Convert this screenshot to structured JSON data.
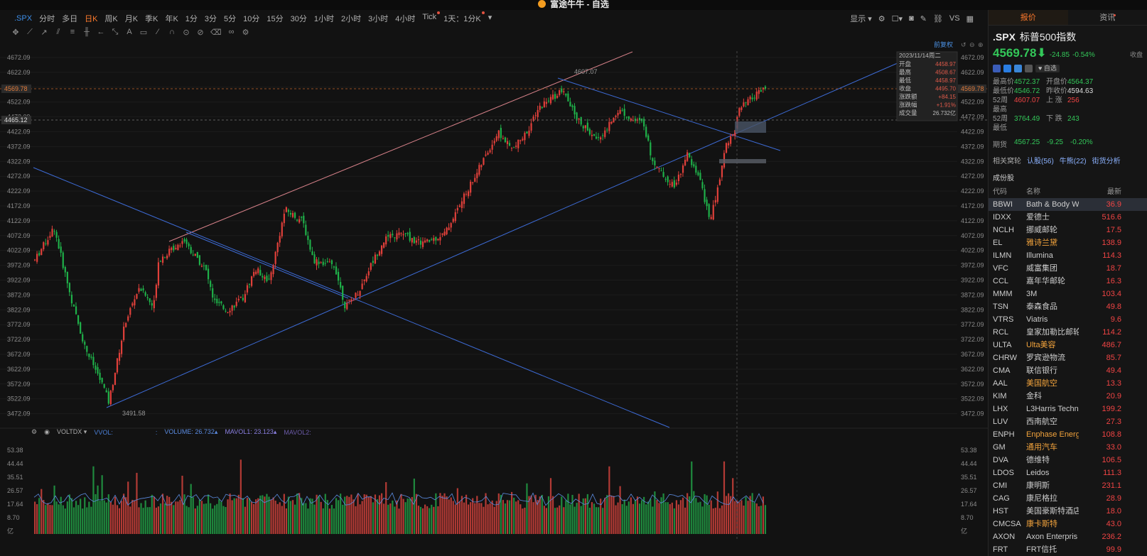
{
  "window": {
    "title": "富途牛牛 - 自选"
  },
  "toolbar": {
    "symbol": ".SPX",
    "periods": [
      "分时",
      "多日",
      "日K",
      "周K",
      "月K",
      "季K",
      "年K",
      "1分",
      "3分",
      "5分",
      "10分",
      "15分",
      "30分",
      "1小时",
      "2小时",
      "3小时",
      "4小时",
      "Tick",
      "1天：1分K"
    ],
    "active_period": "日K",
    "right": {
      "display_label": "显示",
      "vs_label": "VS"
    }
  },
  "chart": {
    "fq_label": "前复权",
    "y_ticks": [
      "4672.09",
      "4622.09",
      "4572.09",
      "4522.09",
      "4472.09",
      "4422.09",
      "4372.09",
      "4322.09",
      "4272.09",
      "4222.09",
      "4172.09",
      "4122.09",
      "4072.09",
      "4022.09",
      "3972.09",
      "3922.09",
      "3872.09",
      "3822.09",
      "3772.09",
      "3722.09",
      "3672.09",
      "3622.09",
      "3572.09",
      "3522.09",
      "3472.09"
    ],
    "current_price_tag": "4569.78",
    "crosshair_price_tag": "4465.12",
    "high_annotation": "4607.07",
    "low_annotation": "3491.58",
    "colors": {
      "up": "#e0403a",
      "down": "#1fb049",
      "channel": "#3d6bd6",
      "upper_line": "#d8828a",
      "bg": "#121212"
    },
    "info_box": {
      "date": "2023/11/14周二",
      "rows": [
        {
          "label": "开盘",
          "value": "4458.97"
        },
        {
          "label": "最高",
          "value": "4508.67"
        },
        {
          "label": "最低",
          "value": "4458.97"
        },
        {
          "label": "收盘",
          "value": "4495.70"
        },
        {
          "label": "涨跌额",
          "value": "+84.15"
        },
        {
          "label": "涨跌幅",
          "value": "+1.91%"
        },
        {
          "label": "成交量",
          "value": "26.732亿"
        }
      ]
    }
  },
  "volume": {
    "indicator": "VOLTDX",
    "vvol_label": "VVOL:",
    "volume_label": "VOLUME:",
    "volume_value": "26.732",
    "mavol1_label": "MAVOL1:",
    "mavol1_value": "23.123",
    "mavol2_label": "MAVOL2:",
    "y_ticks": [
      "53.38",
      "44.44",
      "35.51",
      "26.57",
      "17.64",
      "8.70",
      "亿"
    ]
  },
  "right_panel": {
    "tabs": [
      "报价",
      "资讯"
    ],
    "symbol": ".SPX",
    "name": "标普500指数",
    "price": "4569.78",
    "change": "-24.85",
    "change_pct": "-0.54%",
    "status": "收盘",
    "watch_label": "自选",
    "stats": [
      {
        "k": "最高价",
        "v": "4572.37",
        "c": "green",
        "k2": "开盘价",
        "v2": "4564.37",
        "c2": "green"
      },
      {
        "k": "最低价",
        "v": "4546.72",
        "c": "green",
        "k2": "昨收价",
        "v2": "4594.63",
        "c2": "white"
      },
      {
        "k": "52周最高",
        "v": "4607.07",
        "c": "red",
        "k2": "上 涨",
        "v2": "256",
        "c2": "red"
      },
      {
        "k": "52周最低",
        "v": "3764.49",
        "c": "green",
        "k2": "下 跌",
        "v2": "243",
        "c2": "green"
      }
    ],
    "futures": {
      "label": "期货",
      "price": "4567.25",
      "change": "-9.25",
      "pct": "-0.20%"
    },
    "links": {
      "label": "相关窝轮",
      "items": [
        "认股(56)",
        "牛熊(22)",
        "街货分析"
      ]
    },
    "constituents_label": "成份股",
    "table_headers": [
      "代码",
      "名称",
      "最新"
    ],
    "constituents": [
      {
        "code": "BBWI",
        "name": "Bath & Body W",
        "price": "36.9",
        "org": false
      },
      {
        "code": "IDXX",
        "name": "爱德士",
        "price": "516.6",
        "org": false
      },
      {
        "code": "NCLH",
        "name": "挪威邮轮",
        "price": "17.5",
        "org": false
      },
      {
        "code": "EL",
        "name": "雅诗兰黛",
        "price": "138.9",
        "org": true
      },
      {
        "code": "ILMN",
        "name": "Illumina",
        "price": "114.3",
        "org": false
      },
      {
        "code": "VFC",
        "name": "威富集团",
        "price": "18.7",
        "org": false
      },
      {
        "code": "CCL",
        "name": "嘉年华邮轮",
        "price": "16.3",
        "org": false
      },
      {
        "code": "MMM",
        "name": "3M",
        "price": "103.4",
        "org": false
      },
      {
        "code": "TSN",
        "name": "泰森食品",
        "price": "49.8",
        "org": false
      },
      {
        "code": "VTRS",
        "name": "Viatris",
        "price": "9.6",
        "org": false
      },
      {
        "code": "RCL",
        "name": "皇家加勒比邮轮",
        "price": "114.2",
        "org": false
      },
      {
        "code": "ULTA",
        "name": "Ulta美容",
        "price": "486.7",
        "org": true
      },
      {
        "code": "CHRW",
        "name": "罗宾逊物流",
        "price": "85.7",
        "org": false
      },
      {
        "code": "CMA",
        "name": "联信银行",
        "price": "49.4",
        "org": false
      },
      {
        "code": "AAL",
        "name": "美国航空",
        "price": "13.3",
        "org": true
      },
      {
        "code": "KIM",
        "name": "金科",
        "price": "20.9",
        "org": false
      },
      {
        "code": "LHX",
        "name": "L3Harris Techn",
        "price": "199.2",
        "org": false
      },
      {
        "code": "LUV",
        "name": "西南航空",
        "price": "27.3",
        "org": false
      },
      {
        "code": "ENPH",
        "name": "Enphase Energ",
        "price": "108.8",
        "org": true
      },
      {
        "code": "GM",
        "name": "通用汽车",
        "price": "33.0",
        "org": true
      },
      {
        "code": "DVA",
        "name": "德维特",
        "price": "106.5",
        "org": false
      },
      {
        "code": "LDOS",
        "name": "Leidos",
        "price": "111.3",
        "org": false
      },
      {
        "code": "CMI",
        "name": "康明斯",
        "price": "231.1",
        "org": false
      },
      {
        "code": "CAG",
        "name": "康尼格拉",
        "price": "28.9",
        "org": false
      },
      {
        "code": "HST",
        "name": "美国豪斯特酒店",
        "price": "18.0",
        "org": false
      },
      {
        "code": "CMCSA",
        "name": "康卡斯特",
        "price": "43.0",
        "org": true
      },
      {
        "code": "AXON",
        "name": "Axon Enterpris",
        "price": "236.2",
        "org": false
      },
      {
        "code": "FRT",
        "name": "FRT信托",
        "price": "99.9",
        "org": false
      }
    ]
  }
}
